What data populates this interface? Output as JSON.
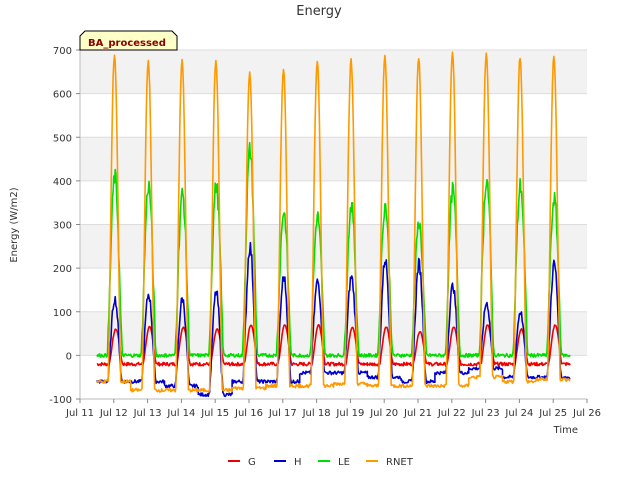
{
  "chart_data": {
    "type": "line",
    "title": "Energy",
    "badge": "BA_processed",
    "xlabel": "Time",
    "ylabel": "Energy (W/m2)",
    "x_start_day": 11,
    "x_end_day": 26,
    "ylim": [
      -100,
      700
    ],
    "yticks": [
      "-100",
      "0",
      "100",
      "200",
      "300",
      "400",
      "500",
      "600",
      "700"
    ],
    "xticks": [
      "Jul 11",
      "Jul 12",
      "Jul 13",
      "Jul 14",
      "Jul 15",
      "Jul 16",
      "Jul 17",
      "Jul 18",
      "Jul 19",
      "Jul 20",
      "Jul 21",
      "Jul 22",
      "Jul 23",
      "Jul 24",
      "Jul 25",
      "Jul 26"
    ],
    "grid": true,
    "legend_position": "bottom",
    "days": [
      "Jul 11",
      "Jul 12",
      "Jul 13",
      "Jul 14",
      "Jul 15",
      "Jul 16",
      "Jul 17",
      "Jul 18",
      "Jul 19",
      "Jul 20",
      "Jul 21",
      "Jul 22",
      "Jul 23",
      "Jul 24"
    ],
    "series": [
      {
        "name": "G",
        "color": "#ee0000",
        "daily_peak": [
          60,
          65,
          65,
          60,
          70,
          70,
          70,
          65,
          65,
          55,
          65,
          70,
          60,
          70
        ],
        "daily_min": [
          -20,
          -20,
          -20,
          -20,
          -20,
          -20,
          -20,
          -20,
          -20,
          -20,
          -20,
          -20,
          -20,
          -20
        ]
      },
      {
        "name": "H",
        "color": "#0000cc",
        "daily_peak": [
          130,
          140,
          130,
          145,
          250,
          180,
          170,
          180,
          220,
          210,
          160,
          120,
          100,
          210
        ],
        "daily_min": [
          -60,
          -60,
          -70,
          -90,
          -60,
          -60,
          -40,
          -40,
          -50,
          -60,
          -40,
          -30,
          -50,
          -50
        ]
      },
      {
        "name": "LE",
        "color": "#00dd00",
        "daily_peak": [
          410,
          390,
          370,
          390,
          470,
          330,
          320,
          345,
          345,
          305,
          380,
          405,
          390,
          360
        ],
        "daily_min": [
          0,
          0,
          0,
          0,
          0,
          0,
          0,
          0,
          0,
          0,
          0,
          0,
          0,
          0
        ]
      },
      {
        "name": "RNET",
        "color": "#ff9900",
        "daily_peak": [
          690,
          675,
          675,
          675,
          650,
          655,
          675,
          675,
          685,
          685,
          695,
          690,
          685,
          685
        ],
        "daily_min": [
          -60,
          -80,
          -80,
          -80,
          -75,
          -70,
          -70,
          -65,
          -70,
          -70,
          -70,
          -50,
          -60,
          -55
        ]
      }
    ]
  }
}
